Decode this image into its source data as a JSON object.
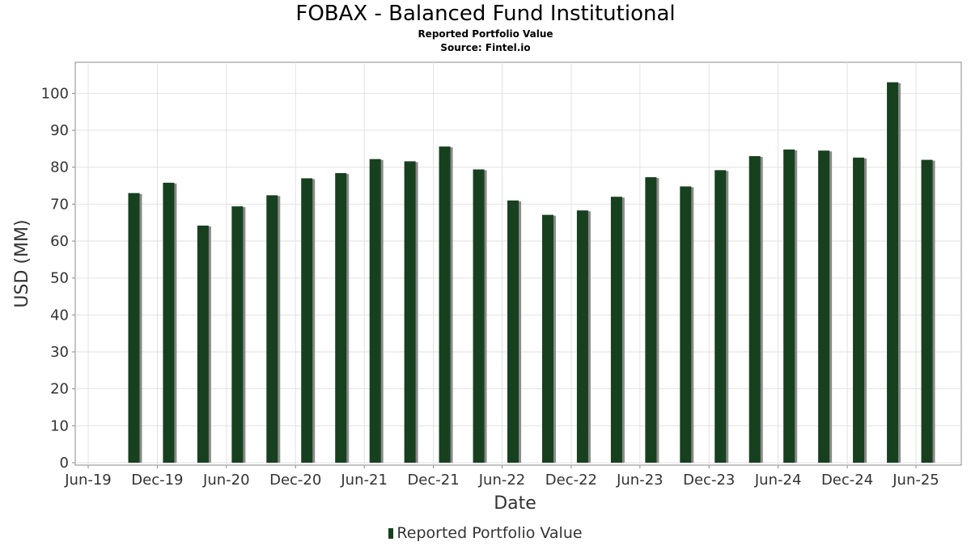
{
  "chart_data": {
    "type": "bar",
    "title": "FOBAX - Balanced Fund Institutional",
    "subtitle": "Reported Portfolio Value",
    "source": "Source: Fintel.io",
    "xlabel": "Date",
    "ylabel": "USD (MM)",
    "ylim": [
      0,
      108
    ],
    "y_ticks": [
      0,
      10,
      20,
      30,
      40,
      50,
      60,
      70,
      80,
      90,
      100
    ],
    "x_tick_labels": [
      "Jun-19",
      "Dec-19",
      "Jun-20",
      "Dec-20",
      "Jun-21",
      "Dec-21",
      "Jun-22",
      "Dec-22",
      "Jun-23",
      "Dec-23",
      "Jun-24",
      "Dec-24",
      "Jun-25"
    ],
    "grid": true,
    "legend_position": "bottom",
    "series": [
      {
        "name": "Reported Portfolio Value",
        "color": "#17401f",
        "x": [
          "2019-09-30",
          "2019-12-31",
          "2020-03-31",
          "2020-06-30",
          "2020-09-30",
          "2020-12-31",
          "2021-03-31",
          "2021-06-30",
          "2021-09-30",
          "2021-12-31",
          "2022-03-31",
          "2022-06-30",
          "2022-09-30",
          "2022-12-31",
          "2023-03-31",
          "2023-06-30",
          "2023-09-30",
          "2023-12-31",
          "2024-03-31",
          "2024-06-30",
          "2024-09-30",
          "2024-12-31",
          "2025-03-31",
          "2025-06-30"
        ],
        "values": [
          73,
          75.8,
          64.2,
          69.4,
          72.4,
          77,
          78.4,
          82.2,
          81.6,
          85.6,
          79.4,
          71,
          67.1,
          68.3,
          72,
          77.3,
          74.8,
          79.2,
          83,
          84.8,
          84.5,
          82.6,
          103,
          82
        ]
      }
    ]
  }
}
